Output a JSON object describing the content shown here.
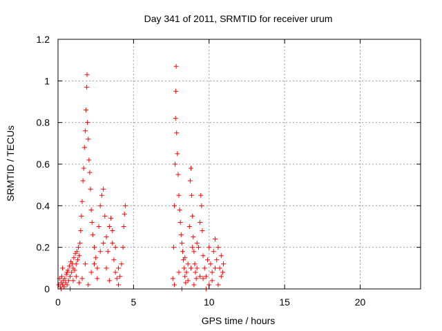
{
  "chart_data": {
    "type": "scatter",
    "title": "Day 341 of 2011, SRMTID for receiver urum",
    "xlabel": "GPS time / hours",
    "ylabel": "SRMTID / TECUs",
    "xlim": [
      0,
      24
    ],
    "ylim": [
      0,
      1.2
    ],
    "x_ticks": [
      0,
      5,
      10,
      15,
      20
    ],
    "x_tick_labels": [
      "0",
      "5",
      "10",
      "15",
      "20"
    ],
    "y_ticks": [
      0,
      0.2,
      0.4,
      0.6,
      0.8,
      1.0,
      1.2
    ],
    "y_tick_labels": [
      "0",
      "0.2",
      "0.4",
      "0.6",
      "0.8",
      "1",
      "1.2"
    ],
    "grid": true,
    "marker": "+",
    "series_color": "#ff0000",
    "series": [
      {
        "name": "SRMTID",
        "points": [
          [
            0.05,
            0.02
          ],
          [
            0.1,
            0.05
          ],
          [
            0.15,
            0.01
          ],
          [
            0.2,
            0.03
          ],
          [
            0.25,
            0.06
          ],
          [
            0.3,
            0.02
          ],
          [
            0.35,
            0.04
          ],
          [
            0.4,
            0.01
          ],
          [
            0.45,
            0.05
          ],
          [
            0.5,
            0.03
          ],
          [
            0.55,
            0.07
          ],
          [
            0.6,
            0.02
          ],
          [
            0.65,
            0.09
          ],
          [
            0.7,
            0.04
          ],
          [
            0.75,
            0.11
          ],
          [
            0.8,
            0.06
          ],
          [
            0.85,
            0.13
          ],
          [
            0.9,
            0.08
          ],
          [
            0.95,
            0.12
          ],
          [
            1.0,
            0.1
          ],
          [
            1.05,
            0.15
          ],
          [
            1.1,
            0.09
          ],
          [
            1.15,
            0.17
          ],
          [
            1.2,
            0.12
          ],
          [
            1.25,
            0.18
          ],
          [
            1.3,
            0.14
          ],
          [
            1.35,
            0.2
          ],
          [
            1.4,
            0.16
          ],
          [
            1.45,
            0.22
          ],
          [
            1.5,
            0.28
          ],
          [
            1.55,
            0.35
          ],
          [
            1.6,
            0.42
          ],
          [
            1.65,
            0.52
          ],
          [
            1.7,
            0.58
          ],
          [
            1.75,
            0.68
          ],
          [
            1.8,
            0.76
          ],
          [
            1.85,
            0.86
          ],
          [
            1.9,
            0.97
          ],
          [
            1.92,
            1.03
          ],
          [
            1.95,
            0.8
          ],
          [
            2.0,
            0.72
          ],
          [
            2.05,
            0.62
          ],
          [
            2.1,
            0.56
          ],
          [
            2.15,
            0.48
          ],
          [
            2.2,
            0.38
          ],
          [
            2.25,
            0.32
          ],
          [
            2.3,
            0.26
          ],
          [
            2.4,
            0.2
          ],
          [
            2.5,
            0.15
          ],
          [
            2.6,
            0.1
          ],
          [
            2.7,
            0.3
          ],
          [
            2.8,
            0.4
          ],
          [
            2.9,
            0.45
          ],
          [
            3.0,
            0.48
          ],
          [
            3.1,
            0.35
          ],
          [
            3.2,
            0.25
          ],
          [
            3.3,
            0.18
          ],
          [
            3.4,
            0.3
          ],
          [
            3.5,
            0.34
          ],
          [
            3.6,
            0.22
          ],
          [
            3.7,
            0.14
          ],
          [
            3.8,
            0.08
          ],
          [
            3.9,
            0.05
          ],
          [
            4.0,
            0.1
          ],
          [
            4.1,
            0.06
          ],
          [
            4.2,
            0.12
          ],
          [
            4.3,
            0.2
          ],
          [
            4.35,
            0.3
          ],
          [
            4.4,
            0.36
          ],
          [
            4.45,
            0.4
          ],
          [
            2.2,
            0.08
          ],
          [
            2.4,
            0.12
          ],
          [
            2.6,
            0.05
          ],
          [
            2.8,
            0.18
          ],
          [
            3.0,
            0.22
          ],
          [
            3.2,
            0.1
          ],
          [
            3.4,
            0.04
          ],
          [
            3.6,
            0.28
          ],
          [
            3.8,
            0.2
          ],
          [
            4.0,
            0.02
          ],
          [
            1.0,
            0.04
          ],
          [
            1.2,
            0.06
          ],
          [
            1.4,
            0.03
          ],
          [
            0.6,
            0.08
          ],
          [
            0.3,
            0.1
          ],
          [
            0.2,
            0.0
          ],
          [
            0.8,
            0.0
          ],
          [
            1.6,
            0.05
          ],
          [
            1.8,
            0.12
          ],
          [
            2.0,
            0.02
          ],
          [
            7.6,
            0.05
          ],
          [
            7.65,
            0.2
          ],
          [
            7.7,
            0.4
          ],
          [
            7.75,
            0.6
          ],
          [
            7.78,
            0.82
          ],
          [
            7.8,
            0.95
          ],
          [
            7.82,
            1.07
          ],
          [
            7.85,
            0.75
          ],
          [
            7.9,
            0.65
          ],
          [
            7.95,
            0.55
          ],
          [
            8.0,
            0.45
          ],
          [
            8.05,
            0.38
          ],
          [
            8.1,
            0.32
          ],
          [
            8.15,
            0.26
          ],
          [
            8.2,
            0.22
          ],
          [
            8.25,
            0.18
          ],
          [
            8.3,
            0.14
          ],
          [
            8.35,
            0.1
          ],
          [
            8.4,
            0.06
          ],
          [
            8.45,
            0.03
          ],
          [
            8.5,
            0.08
          ],
          [
            8.6,
            0.12
          ],
          [
            8.7,
            0.3
          ],
          [
            8.75,
            0.52
          ],
          [
            8.8,
            0.58
          ],
          [
            8.85,
            0.45
          ],
          [
            8.9,
            0.35
          ],
          [
            8.95,
            0.25
          ],
          [
            9.0,
            0.18
          ],
          [
            9.05,
            0.12
          ],
          [
            9.1,
            0.08
          ],
          [
            9.15,
            0.05
          ],
          [
            9.2,
            0.1
          ],
          [
            9.3,
            0.2
          ],
          [
            9.4,
            0.32
          ],
          [
            9.45,
            0.45
          ],
          [
            9.5,
            0.4
          ],
          [
            9.55,
            0.28
          ],
          [
            9.6,
            0.16
          ],
          [
            9.7,
            0.1
          ],
          [
            9.8,
            0.06
          ],
          [
            9.9,
            0.14
          ],
          [
            10.0,
            0.2
          ],
          [
            10.1,
            0.12
          ],
          [
            10.2,
            0.08
          ],
          [
            10.3,
            0.18
          ],
          [
            10.4,
            0.24
          ],
          [
            10.5,
            0.14
          ],
          [
            10.6,
            0.2
          ],
          [
            10.7,
            0.1
          ],
          [
            10.8,
            0.16
          ],
          [
            10.9,
            0.08
          ],
          [
            10.95,
            0.12
          ],
          [
            8.2,
            0.0
          ],
          [
            8.6,
            0.04
          ],
          [
            9.0,
            0.02
          ],
          [
            9.4,
            0.06
          ],
          [
            9.8,
            0.0
          ],
          [
            10.2,
            0.04
          ],
          [
            10.6,
            0.02
          ],
          [
            7.7,
            0.02
          ],
          [
            8.0,
            0.08
          ],
          [
            8.4,
            0.15
          ],
          [
            8.8,
            0.1
          ],
          [
            9.2,
            0.22
          ],
          [
            9.6,
            0.05
          ],
          [
            10.0,
            0.02
          ],
          [
            10.4,
            0.1
          ],
          [
            10.8,
            0.06
          ],
          [
            8.9,
            0.2
          ]
        ]
      }
    ]
  }
}
